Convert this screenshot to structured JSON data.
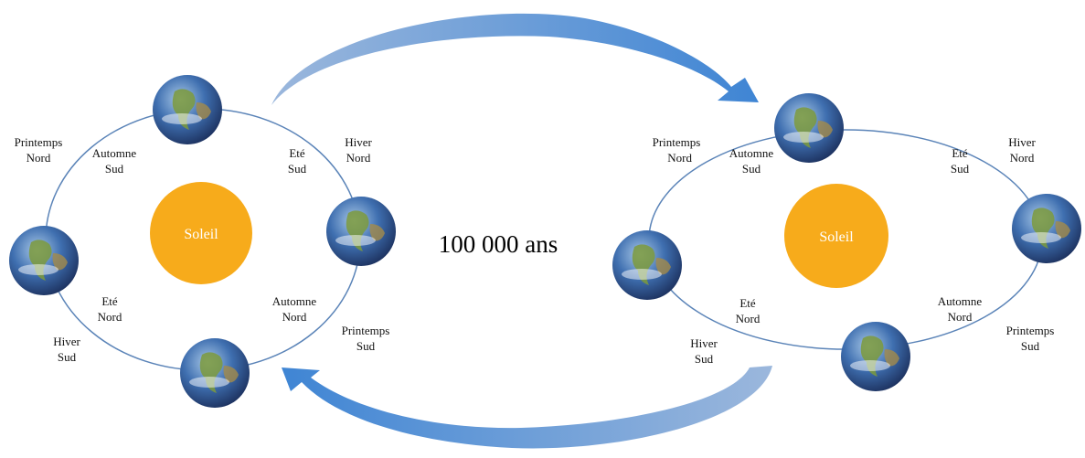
{
  "center_label": "100 000 ans",
  "left": {
    "sun": "Soleil",
    "labels": [
      [
        "Printemps",
        "Nord"
      ],
      [
        "Automne",
        "Sud"
      ],
      [
        "Eté",
        "Sud"
      ],
      [
        "Hiver",
        "Nord"
      ],
      [
        "Eté",
        "Nord"
      ],
      [
        "Hiver",
        "Sud"
      ],
      [
        "Automne",
        "Nord"
      ],
      [
        "Printemps",
        "Sud"
      ]
    ]
  },
  "right": {
    "sun": "Soleil",
    "labels": [
      [
        "Printemps",
        "Nord"
      ],
      [
        "Automne",
        "Sud"
      ],
      [
        "Eté",
        "Sud"
      ],
      [
        "Hiver",
        "Nord"
      ],
      [
        "Eté",
        "Nord"
      ],
      [
        "Hiver",
        "Sud"
      ],
      [
        "Automne",
        "Nord"
      ],
      [
        "Printemps",
        "Sud"
      ]
    ]
  }
}
